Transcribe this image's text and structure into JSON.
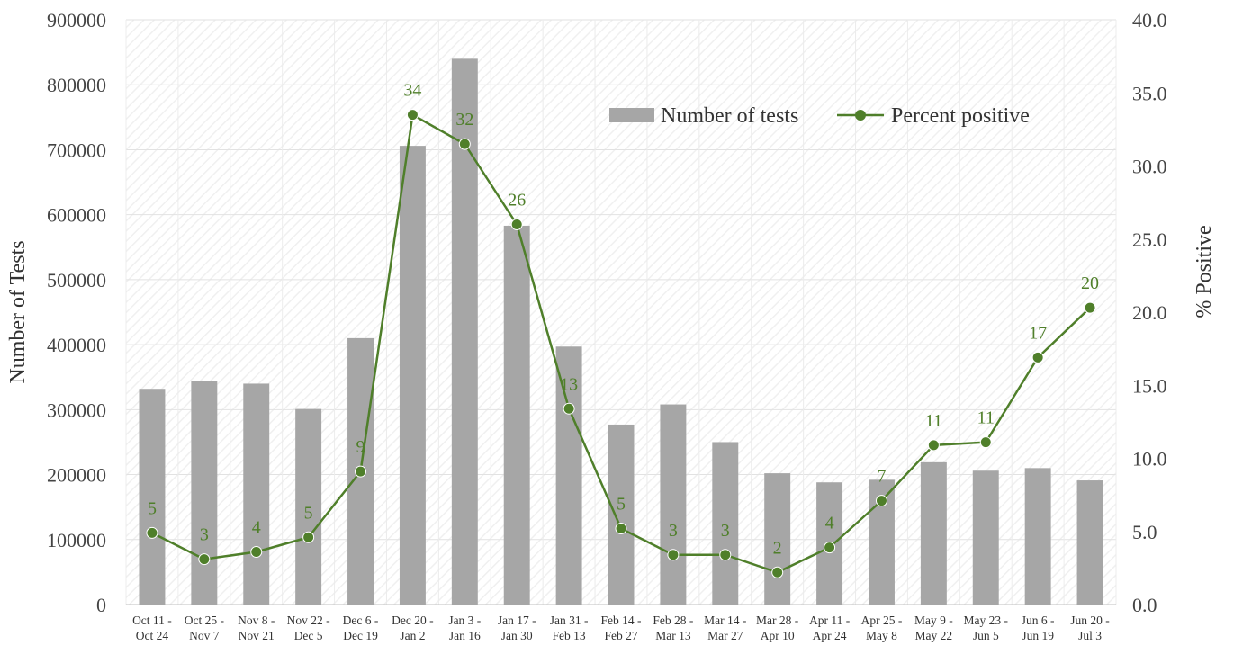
{
  "chart_data": {
    "type": "bar",
    "categories": [
      [
        "Oct 11 -",
        "Oct 24"
      ],
      [
        "Oct 25 -",
        "Nov 7"
      ],
      [
        "Nov 8 -",
        "Nov 21"
      ],
      [
        "Nov 22 -",
        "Dec 5"
      ],
      [
        "Dec 6 -",
        "Dec 19"
      ],
      [
        "Dec 20 -",
        "Jan 2"
      ],
      [
        "Jan 3 -",
        "Jan 16"
      ],
      [
        "Jan 17 -",
        "Jan 30"
      ],
      [
        "Jan 31 -",
        "Feb 13"
      ],
      [
        "Feb 14 -",
        "Feb 27"
      ],
      [
        "Feb 28 -",
        "Mar 13"
      ],
      [
        "Mar 14 -",
        "Mar 27"
      ],
      [
        "Mar 28 -",
        "Apr 10"
      ],
      [
        "Apr 11 -",
        "Apr 24"
      ],
      [
        "Apr 25 -",
        "May 8"
      ],
      [
        "May 9 -",
        "May 22"
      ],
      [
        "May 23 -",
        "Jun 5"
      ],
      [
        "Jun 6 -",
        "Jun 19"
      ],
      [
        "Jun 20 -",
        "Jul 3"
      ]
    ],
    "series": [
      {
        "name": "Number of tests",
        "type": "bar",
        "axis": "left",
        "color": "#a6a6a6",
        "values": [
          332000,
          344000,
          340000,
          301000,
          410000,
          706000,
          840000,
          583000,
          397000,
          277000,
          308000,
          250000,
          202000,
          188000,
          192000,
          219000,
          206000,
          210000,
          191000
        ]
      },
      {
        "name": "Percent positive",
        "type": "line",
        "axis": "right",
        "color": "#4f7f2a",
        "values": [
          4.9,
          3.1,
          3.6,
          4.6,
          9.1,
          33.5,
          31.5,
          26.0,
          13.4,
          5.2,
          3.4,
          3.4,
          2.2,
          3.9,
          7.1,
          10.9,
          11.1,
          16.9,
          20.3
        ],
        "labels": [
          "5",
          "3",
          "4",
          "5",
          "9",
          "34",
          "32",
          "26",
          "13",
          "5",
          "3",
          "3",
          "2",
          "4",
          "7",
          "11",
          "11",
          "17",
          "20"
        ]
      }
    ],
    "ylabel": "Number of Tests",
    "y2label": "% Positive",
    "ylim": [
      0,
      900000
    ],
    "y2lim": [
      0,
      40
    ],
    "yticks": [
      "0",
      "100000",
      "200000",
      "300000",
      "400000",
      "500000",
      "600000",
      "700000",
      "800000",
      "900000"
    ],
    "y2ticks": [
      "0.0",
      "5.0",
      "10.0",
      "15.0",
      "20.0",
      "25.0",
      "30.0",
      "35.0",
      "40.0"
    ],
    "grid": true,
    "legend_position": "top-right"
  }
}
